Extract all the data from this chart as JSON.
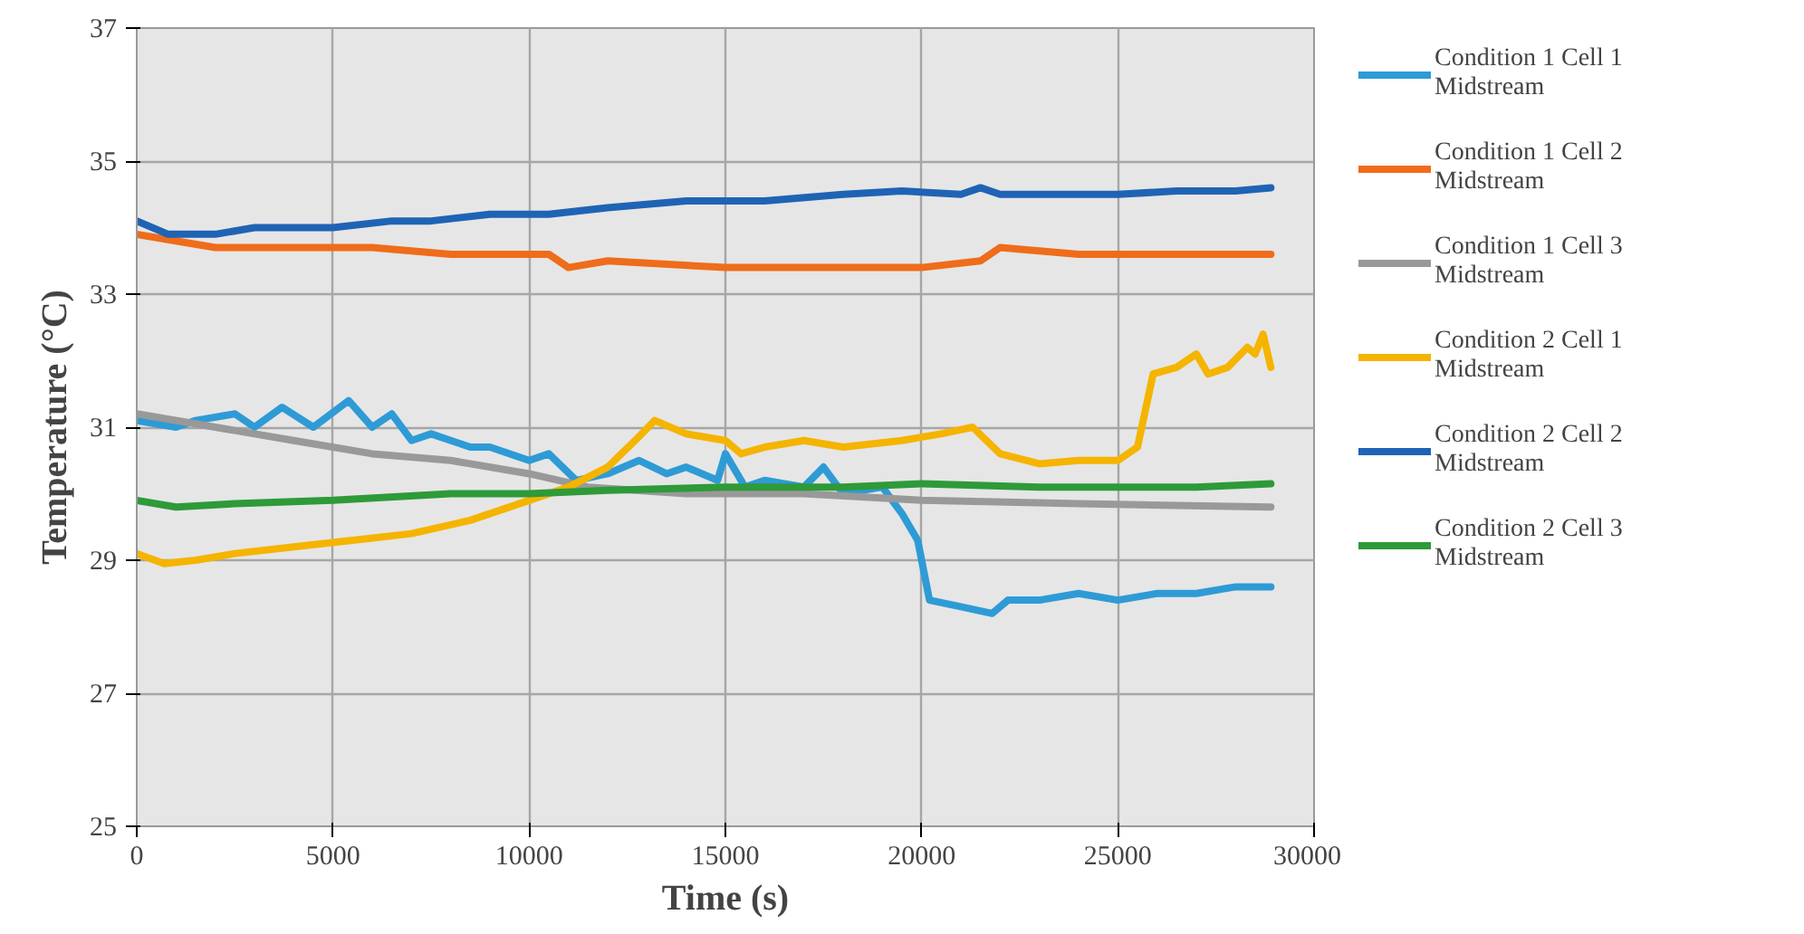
{
  "chart_data": {
    "type": "line",
    "xlabel": "Time (s)",
    "ylabel": "Temperature (°C)",
    "xlim": [
      0,
      30000
    ],
    "ylim": [
      25,
      37
    ],
    "xticks": [
      0,
      5000,
      10000,
      15000,
      20000,
      25000,
      30000
    ],
    "yticks": [
      25,
      27,
      29,
      31,
      33,
      35,
      37
    ],
    "grid": true,
    "legend": "right",
    "marker": "none",
    "line_style": "solid",
    "series": [
      {
        "name": "Condition 1 Cell 1 Midstream",
        "color": "#2e9bd6",
        "x": [
          0,
          1000,
          1500,
          2500,
          3000,
          3700,
          4500,
          5400,
          6000,
          6500,
          7000,
          7500,
          8500,
          9000,
          10000,
          10500,
          11200,
          12000,
          12800,
          13500,
          14000,
          14800,
          15000,
          15500,
          16000,
          17000,
          17500,
          18000,
          19000,
          19500,
          19900,
          20200,
          21000,
          21800,
          22200,
          23000,
          24000,
          25000,
          26000,
          27000,
          28000,
          28900
        ],
        "values": [
          31.1,
          31.0,
          31.1,
          31.2,
          31.0,
          31.3,
          31.0,
          31.4,
          31.0,
          31.2,
          30.8,
          30.9,
          30.7,
          30.7,
          30.5,
          30.6,
          30.2,
          30.3,
          30.5,
          30.3,
          30.4,
          30.2,
          30.6,
          30.1,
          30.2,
          30.1,
          30.4,
          30.0,
          30.1,
          29.7,
          29.3,
          28.4,
          28.3,
          28.2,
          28.4,
          28.4,
          28.5,
          28.4,
          28.5,
          28.5,
          28.6,
          28.6
        ]
      },
      {
        "name": "Condition 1 Cell 2 Midstream",
        "color": "#ef6c1a",
        "x": [
          0,
          1000,
          2000,
          4000,
          6000,
          8000,
          10500,
          11000,
          12000,
          15000,
          18000,
          20000,
          21500,
          22000,
          24000,
          26000,
          28900
        ],
        "values": [
          33.9,
          33.8,
          33.7,
          33.7,
          33.7,
          33.6,
          33.6,
          33.4,
          33.5,
          33.4,
          33.4,
          33.4,
          33.5,
          33.7,
          33.6,
          33.6,
          33.6
        ]
      },
      {
        "name": "Condition 1 Cell 3 Midstream",
        "color": "#999999",
        "x": [
          0,
          2000,
          4000,
          6000,
          8000,
          10000,
          11500,
          14000,
          17000,
          20000,
          24000,
          28900
        ],
        "values": [
          31.2,
          31.0,
          30.8,
          30.6,
          30.5,
          30.3,
          30.1,
          30.0,
          30.0,
          29.9,
          29.85,
          29.8
        ]
      },
      {
        "name": "Condition 2 Cell 1 Midstream",
        "color": "#f5b400",
        "x": [
          0,
          700,
          1500,
          2500,
          4000,
          5500,
          7000,
          8500,
          10000,
          11000,
          12000,
          12700,
          13200,
          14000,
          15000,
          15400,
          16000,
          17000,
          18000,
          19500,
          20500,
          21300,
          22000,
          23000,
          24000,
          25000,
          25500,
          25900,
          26500,
          27000,
          27300,
          27800,
          28300,
          28500,
          28700,
          28900
        ],
        "values": [
          29.1,
          28.95,
          29.0,
          29.1,
          29.2,
          29.3,
          29.4,
          29.6,
          29.9,
          30.1,
          30.4,
          30.8,
          31.1,
          30.9,
          30.8,
          30.6,
          30.7,
          30.8,
          30.7,
          30.8,
          30.9,
          31.0,
          30.6,
          30.45,
          30.5,
          30.5,
          30.7,
          31.8,
          31.9,
          32.1,
          31.8,
          31.9,
          32.2,
          32.1,
          32.4,
          31.9
        ]
      },
      {
        "name": "Condition 2 Cell 2 Midstream",
        "color": "#1f63b5",
        "x": [
          0,
          800,
          2000,
          3000,
          5000,
          6500,
          7500,
          9000,
          10500,
          12000,
          14000,
          16000,
          18000,
          19500,
          21000,
          21500,
          22000,
          24000,
          25000,
          26500,
          28000,
          28900
        ],
        "values": [
          34.1,
          33.9,
          33.9,
          34.0,
          34.0,
          34.1,
          34.1,
          34.2,
          34.2,
          34.3,
          34.4,
          34.4,
          34.5,
          34.55,
          34.5,
          34.6,
          34.5,
          34.5,
          34.5,
          34.55,
          34.55,
          34.6
        ]
      },
      {
        "name": "Condition 2 Cell 3 Midstream",
        "color": "#2e9a38",
        "x": [
          0,
          1000,
          2500,
          5000,
          8000,
          10000,
          12000,
          15000,
          18000,
          20000,
          23000,
          25000,
          27000,
          28900
        ],
        "values": [
          29.9,
          29.8,
          29.85,
          29.9,
          30.0,
          30.0,
          30.05,
          30.1,
          30.1,
          30.15,
          30.1,
          30.1,
          30.1,
          30.15
        ]
      }
    ]
  }
}
